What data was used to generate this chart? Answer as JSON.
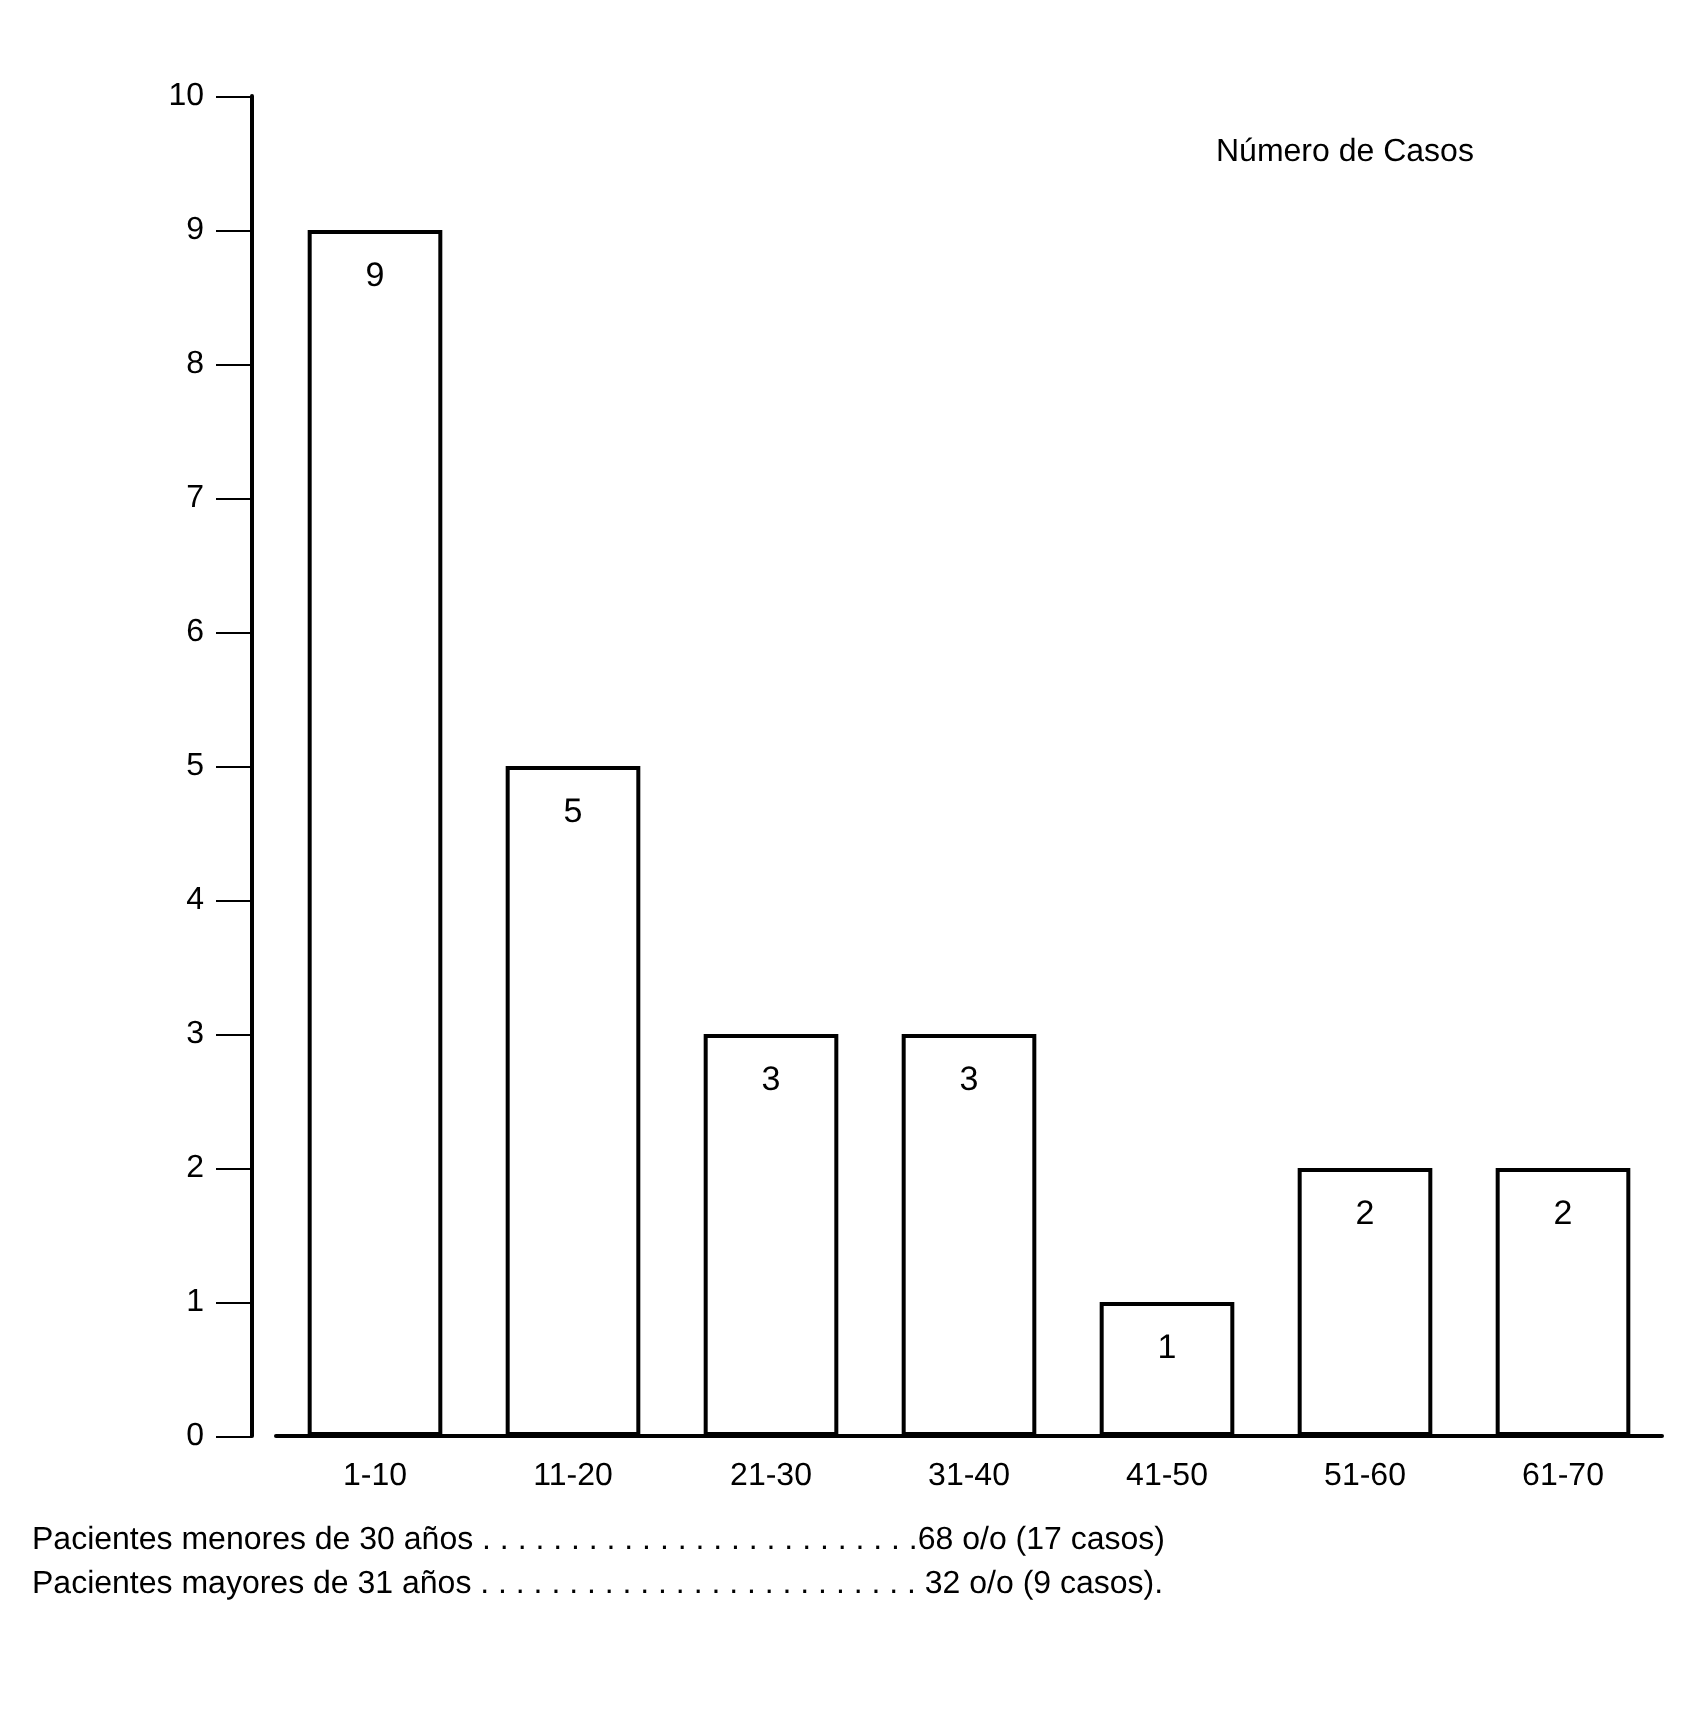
{
  "chart_data": {
    "type": "bar",
    "ylabel": "Número de Casos",
    "categories": [
      "1-10",
      "11-20",
      "21-30",
      "31-40",
      "41-50",
      "51-60",
      "61-70"
    ],
    "values": [
      9,
      5,
      3,
      3,
      1,
      2,
      2
    ],
    "color": "#ffffff",
    "ylim": [
      0,
      10
    ],
    "yticks": [
      0,
      1,
      2,
      3,
      4,
      5,
      6,
      7,
      8,
      9,
      10
    ],
    "data_labels": true,
    "annotations": [
      "Pacientes menores de 30 años . . . . . . . . . . . . . . . . . . . . . . . . .68 o/o (17 casos)",
      "Pacientes mayores de 31 años . . . . . . . . . . . . . . . . . . . . . . . . . 32 o/o (9 casos)."
    ]
  }
}
